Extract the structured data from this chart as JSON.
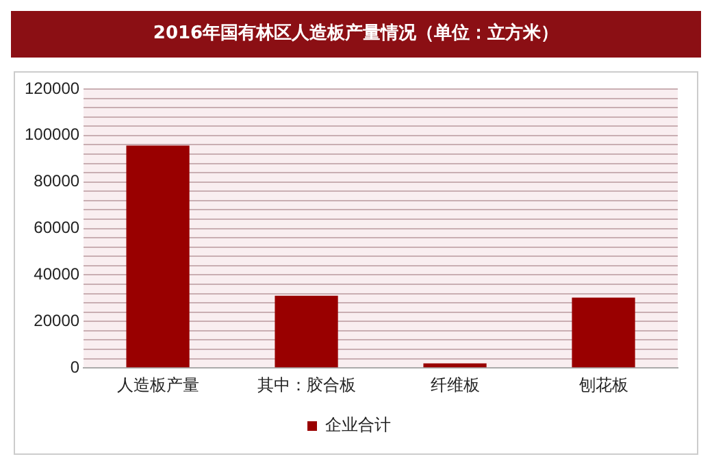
{
  "chart_data": {
    "type": "bar",
    "title": "2016年国有林区人造板产量情况（单位：立方米）",
    "categories": [
      "人造板产量",
      "其中：胶合板",
      "纤维板",
      "刨花板"
    ],
    "series": [
      {
        "name": "企业合计",
        "color": "#990000",
        "values": [
          95700,
          31100,
          2000,
          30300
        ]
      }
    ],
    "ylim": [
      0,
      120000
    ],
    "yticks": [
      0,
      {
        "value": 4000,
        "label": null
      },
      {
        "value": 8000,
        "label": null
      },
      {
        "value": 12000,
        "label": null
      },
      {
        "value": 16000,
        "label": null
      },
      20000,
      {
        "value": 24000,
        "label": null
      },
      {
        "value": 28000,
        "label": null
      },
      {
        "value": 32000,
        "label": null
      },
      {
        "value": 36000,
        "label": null
      },
      40000,
      {
        "value": 44000,
        "label": null
      },
      {
        "value": 48000,
        "label": null
      },
      {
        "value": 52000,
        "label": null
      },
      {
        "value": 56000,
        "label": null
      },
      60000,
      {
        "value": 64000,
        "label": null
      },
      {
        "value": 68000,
        "label": null
      },
      {
        "value": 72000,
        "label": null
      },
      {
        "value": 76000,
        "label": null
      },
      80000,
      {
        "value": 84000,
        "label": null
      },
      {
        "value": 88000,
        "label": null
      },
      {
        "value": 92000,
        "label": null
      },
      {
        "value": 96000,
        "label": null
      },
      100000,
      {
        "value": 104000,
        "label": null
      },
      {
        "value": 108000,
        "label": null
      },
      {
        "value": 112000,
        "label": null
      },
      {
        "value": 116000,
        "label": null
      },
      120000
    ],
    "grid": "y",
    "legend": "bottom"
  }
}
